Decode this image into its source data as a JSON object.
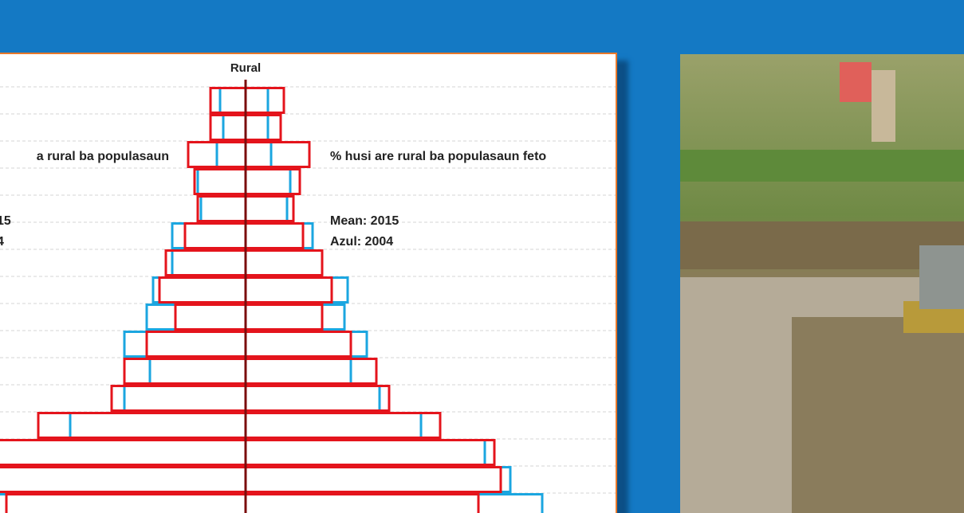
{
  "chart_data": {
    "type": "pyramid",
    "title": "Rural",
    "left_label": "a rural ba populasaun",
    "right_label": "% husi are rural ba populasaun feto",
    "left_legend": [
      "15",
      "4"
    ],
    "xlim": [
      -10,
      10
    ],
    "series": [
      {
        "name": "Azul: 2004",
        "color": "#1ba6e0",
        "left": [
          0.8,
          0.7,
          0.9,
          1.5,
          1.4,
          2.3,
          2.3,
          2.9,
          3.1,
          3.8,
          3.0,
          3.8,
          5.5,
          7.8,
          8.4,
          9.5
        ],
        "right": [
          0.7,
          0.7,
          0.8,
          1.4,
          1.3,
          2.1,
          2.4,
          3.2,
          3.1,
          3.8,
          3.3,
          4.2,
          5.5,
          7.5,
          8.3,
          9.3
        ]
      },
      {
        "name": "Mean: 2015",
        "color": "#e4141c",
        "left": [
          1.1,
          1.1,
          1.8,
          1.6,
          1.5,
          1.9,
          2.5,
          2.7,
          2.2,
          3.1,
          3.8,
          4.2,
          6.5,
          8.3,
          8.1,
          7.5
        ],
        "right": [
          1.2,
          1.1,
          2.0,
          1.7,
          1.5,
          1.8,
          2.4,
          2.7,
          2.4,
          3.3,
          4.1,
          4.5,
          6.1,
          7.8,
          8.0,
          7.3
        ]
      }
    ]
  }
}
